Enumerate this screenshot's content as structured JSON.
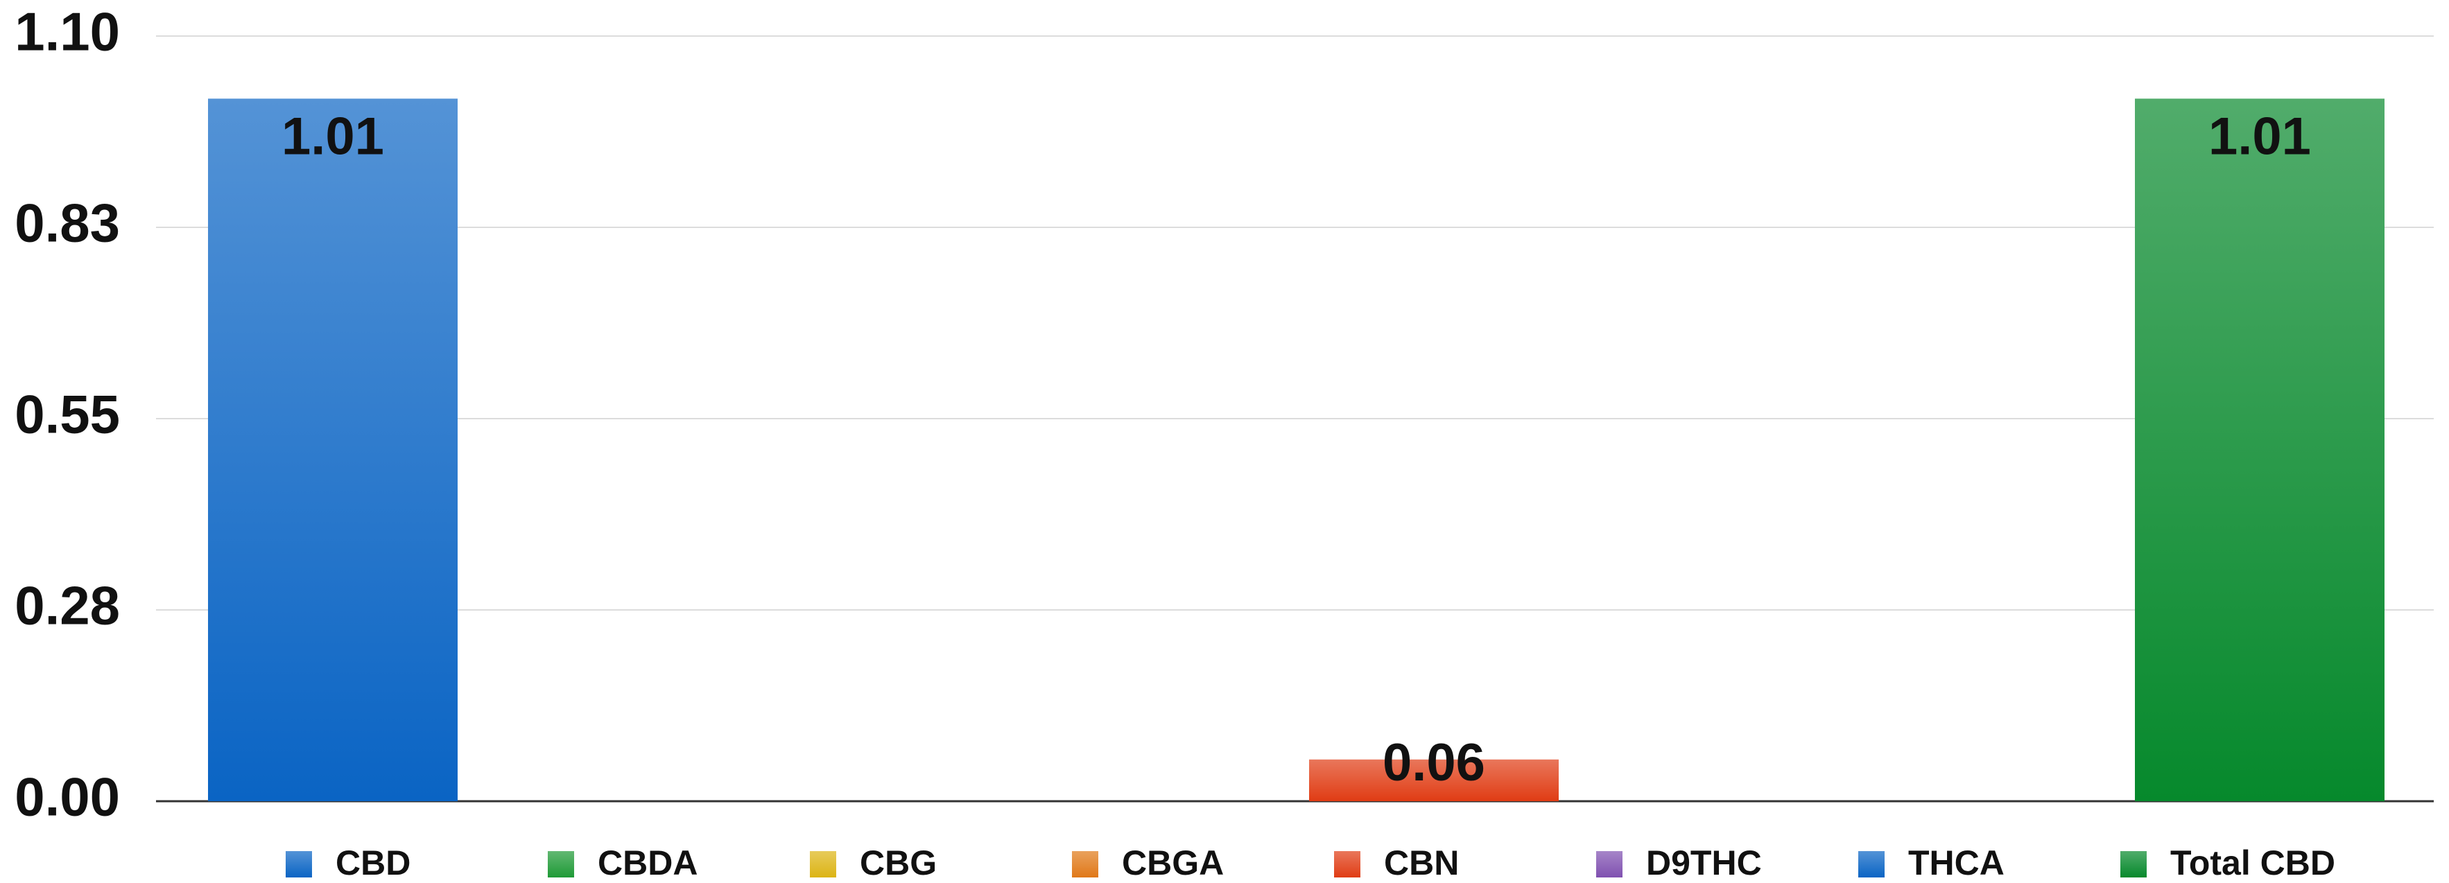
{
  "chart_data": {
    "type": "bar",
    "categories": [
      "CBD",
      "CBDA",
      "CBG",
      "CBGA",
      "CBN",
      "D9THC",
      "THCA",
      "Total CBD"
    ],
    "values": [
      1.01,
      0,
      0,
      0,
      0.06,
      0,
      0,
      1.01
    ],
    "colors": [
      "#0a64c4",
      "#1e9a36",
      "#dcb414",
      "#e07818",
      "#e03c14",
      "#8050b0",
      "#0a64c4",
      "#06892c"
    ],
    "ylim": [
      0,
      1.1
    ],
    "yticks": [
      {
        "value": 0,
        "label": "0.00"
      },
      {
        "value": 0.275,
        "label": "0.28"
      },
      0.55,
      {
        "value": 0.825,
        "label": "0.83"
      },
      {
        "value": 1.1,
        "label": "1.10"
      }
    ],
    "grid": true
  }
}
